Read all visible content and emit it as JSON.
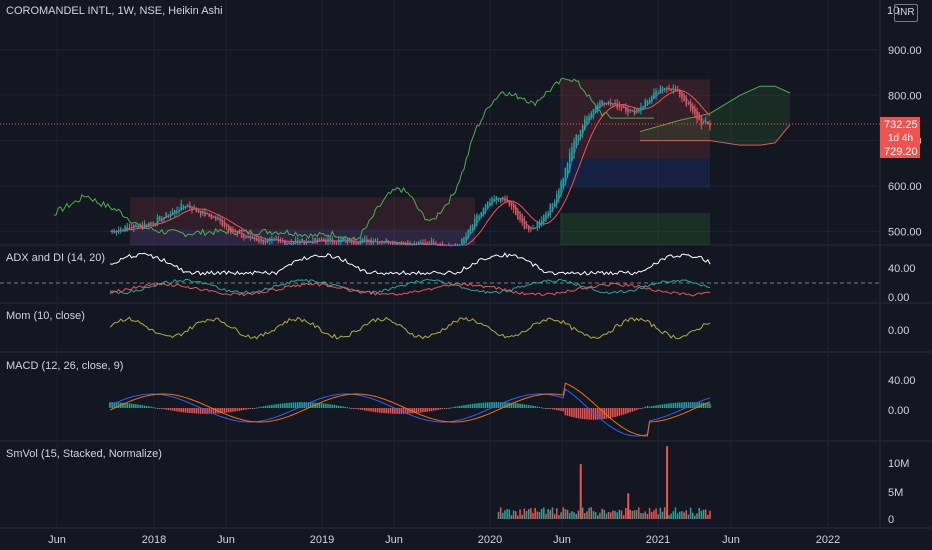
{
  "header": {
    "title": "COROMANDEL INTL, 1W, NSE, Heikin Ashi",
    "currency": "INR",
    "top_price_partial": "10"
  },
  "price_tags": {
    "last": "732.25",
    "countdown": "1d 4h",
    "other": "729.20"
  },
  "colors": {
    "background": "#131722",
    "up": "#26a69a",
    "down": "#ef5350",
    "kumo_green": "#2e7d32",
    "kumo_red": "#c62828",
    "lagging": "#4caf50",
    "base": "#ef5350",
    "conversion": "#2962ff",
    "adx": "#ffffff",
    "mom": "#b5ac3a",
    "macd": "#2962ff",
    "signal": "#ff6d00"
  },
  "chart_data": [
    {
      "pane": "price",
      "type": "candlestick",
      "title": "COROMANDEL INTL, 1W, NSE, Heikin Ashi",
      "ylim": [
        470,
        1010
      ],
      "y_ticks": [
        "500.00",
        "600.00",
        "700.00",
        "800.00",
        "900.00"
      ],
      "last_price": 732.25,
      "annotations": [
        "732.25",
        "1d 4h",
        "729.20"
      ],
      "x_labels": [
        "Jun",
        "2018",
        "Jun",
        "2019",
        "Jun",
        "2020",
        "Jun",
        "2021",
        "Jun",
        "2022"
      ],
      "close_path": [
        [
          0,
          500
        ],
        [
          20,
          520
        ],
        [
          30,
          545
        ],
        [
          35,
          560
        ],
        [
          40,
          545
        ],
        [
          50,
          525
        ],
        [
          60,
          490
        ],
        [
          70,
          480
        ],
        [
          80,
          475
        ],
        [
          90,
          478
        ],
        [
          100,
          480
        ],
        [
          110,
          478
        ],
        [
          120,
          480
        ],
        [
          130,
          478
        ],
        [
          140,
          470
        ],
        [
          150,
          475
        ],
        [
          160,
          460
        ],
        [
          165,
          490
        ],
        [
          170,
          530
        ],
        [
          175,
          560
        ],
        [
          180,
          575
        ],
        [
          185,
          560
        ],
        [
          190,
          520
        ],
        [
          195,
          500
        ],
        [
          205,
          560
        ],
        [
          210,
          620
        ],
        [
          215,
          700
        ],
        [
          222,
          760
        ],
        [
          228,
          790
        ],
        [
          232,
          780
        ],
        [
          238,
          775
        ],
        [
          242,
          760
        ],
        [
          248,
          785
        ],
        [
          252,
          800
        ],
        [
          258,
          820
        ],
        [
          262,
          810
        ],
        [
          266,
          790
        ],
        [
          270,
          760
        ],
        [
          274,
          740
        ],
        [
          278,
          732
        ]
      ]
    },
    {
      "pane": "adx",
      "type": "line",
      "title": "ADX and DI (14, 20)",
      "y_ticks": [
        "40.00",
        "0.00"
      ],
      "ylim": [
        0,
        60
      ]
    },
    {
      "pane": "momentum",
      "type": "line",
      "title": "Mom (10, close)",
      "y_ticks": [
        "0.00"
      ]
    },
    {
      "pane": "macd",
      "type": "bar",
      "title": "MACD (12, 26, close, 9)",
      "y_ticks": [
        "40.00",
        "0.00"
      ]
    },
    {
      "pane": "volume",
      "type": "bar",
      "title": "SmVol (15, Stacked, Normalize)",
      "y_ticks": [
        "10M",
        "5M",
        "0"
      ],
      "spikes": [
        {
          "x_week": 218,
          "value": 9800000
        },
        {
          "x_week": 258,
          "value": 13000000
        },
        {
          "x_week": 240,
          "value": 4600000
        }
      ]
    }
  ]
}
